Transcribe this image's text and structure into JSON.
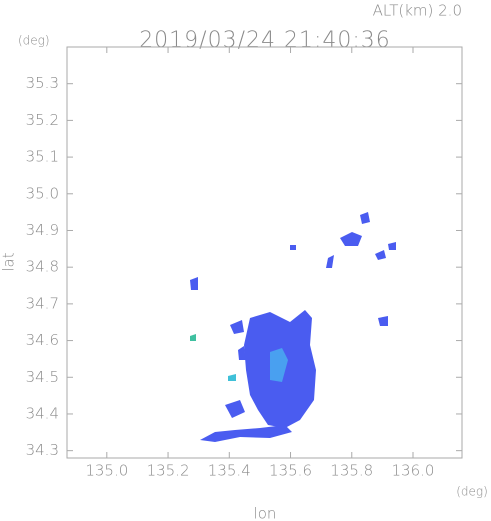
{
  "chart_data": {
    "type": "radar-map",
    "title": "2019/03/24 21:40:36",
    "subtitle": "ALT(km) 2.0",
    "x_label": "lon",
    "y_label": "lat",
    "x_unit": "(deg)",
    "y_unit": "(deg)",
    "xlim": [
      134.87,
      136.16
    ],
    "ylim": [
      34.28,
      35.4
    ],
    "xticks": [
      {
        "value": 135,
        "label": "135.0"
      },
      135.2,
      135.4,
      135.6,
      135.8,
      {
        "value": 136,
        "label": "136.0"
      }
    ],
    "yticks": [
      34.3,
      34.4,
      34.5,
      34.6,
      34.7,
      34.8,
      34.9,
      {
        "value": 35,
        "label": "35.0"
      },
      35.1,
      35.2,
      35.3
    ],
    "color": "#4a5cf0"
  }
}
